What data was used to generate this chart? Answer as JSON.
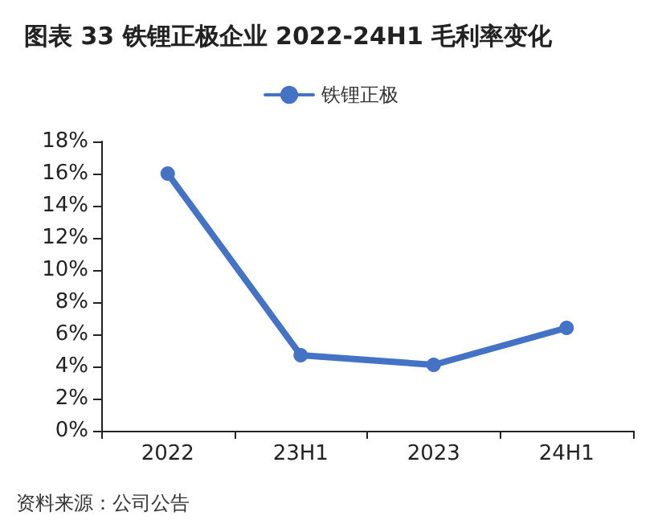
{
  "chart_data": {
    "type": "line",
    "title": "图表 33 铁锂正极企业 2022-24H1 毛利率变化",
    "categories": [
      "2022",
      "23H1",
      "2023",
      "24H1"
    ],
    "series": [
      {
        "name": "铁锂正极",
        "color": "#4472c4",
        "values": [
          16.0,
          4.7,
          4.1,
          6.4
        ]
      }
    ],
    "ylim": [
      0,
      18
    ],
    "yticks": [
      {
        "value": 0,
        "label": "0%"
      },
      {
        "value": 2,
        "label": "2%"
      },
      {
        "value": 4,
        "label": "4%"
      },
      {
        "value": 6,
        "label": "6%"
      },
      {
        "value": 8,
        "label": "8%"
      },
      {
        "value": 10,
        "label": "10%"
      },
      {
        "value": 12,
        "label": "12%"
      },
      {
        "value": 14,
        "label": "14%"
      },
      {
        "value": 16,
        "label": "16%"
      },
      {
        "value": 18,
        "label": "18%"
      }
    ],
    "legend": "top",
    "marker": "circle",
    "line_style": "solid",
    "annotations": [
      "资料来源：公司公告"
    ]
  }
}
